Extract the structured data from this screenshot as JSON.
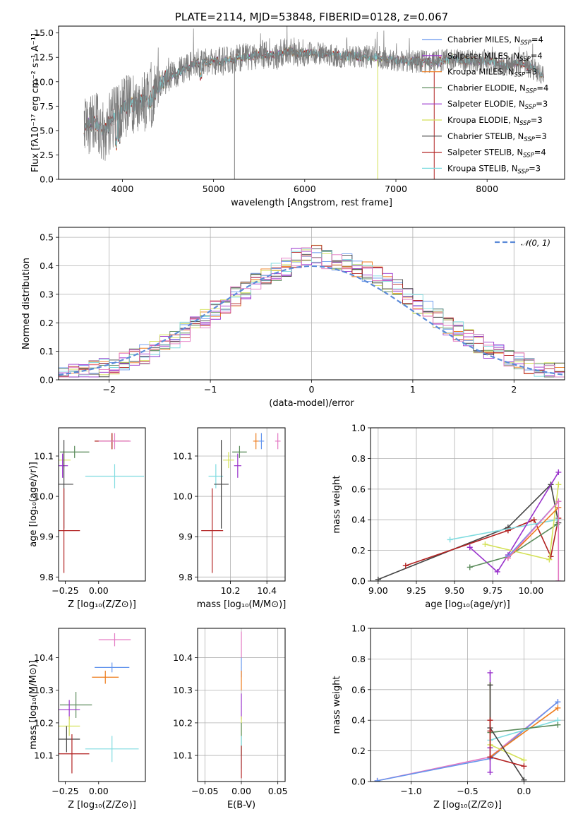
{
  "colors": {
    "Chabrier MILES": "#6495ed",
    "Salpeter MILES": "#9a32cd",
    "Kroupa MILES": "#ee7b1c",
    "Chabrier ELODIE": "#5b8b5b",
    "Salpeter ELODIE": "#9932cc",
    "Kroupa ELODIE": "#d4e157",
    "Chabrier STELIB": "#444444",
    "Salpeter STELIB": "#b22222",
    "Kroupa STELIB": "#7fdce0",
    "pink": "#e377c2",
    "gaussian": "#5b8ad8",
    "grid": "#b0b0b0"
  },
  "chart_data": [
    {
      "id": "spectrum",
      "type": "line",
      "title": "PLATE=2114, MJD=53848, FIBERID=0128, z=0.067",
      "xlabel": "wavelength [Angstrom, rest frame]",
      "ylabel": "Flux [fλ10⁻¹⁷ erg cm⁻² s⁻¹ A⁻¹]",
      "xlim": [
        3300,
        8850
      ],
      "ylim": [
        0,
        15.7
      ],
      "xticks": [
        "4000",
        "5000",
        "6000",
        "7000",
        "8000"
      ],
      "yticks": [
        "0.0",
        "2.5",
        "5.0",
        "7.5",
        "10.0",
        "12.5",
        "15.0"
      ],
      "grid": false,
      "legend_position": "top-right",
      "series": [
        {
          "name": "Chabrier MILES, N_SSP=4",
          "label": "Chabrier MILES, N",
          "sub": "SSP",
          "suffix": "=4"
        },
        {
          "name": "Salpeter MILES, N_SSP=4",
          "label": "Salpeter MILES, N",
          "sub": "SSP",
          "suffix": "=4"
        },
        {
          "name": "Kroupa MILES, N_SSP=3",
          "label": "Kroupa MILES, N",
          "sub": "SSP",
          "suffix": "=3"
        },
        {
          "name": "Chabrier ELODIE, N_SSP=4",
          "label": "Chabrier ELODIE, N",
          "sub": "SSP",
          "suffix": "=4"
        },
        {
          "name": "Salpeter ELODIE, N_SSP=3",
          "label": "Salpeter ELODIE, N",
          "sub": "SSP",
          "suffix": "=3"
        },
        {
          "name": "Kroupa ELODIE, N_SSP=3",
          "label": "Kroupa ELODIE, N",
          "sub": "SSP",
          "suffix": "=3"
        },
        {
          "name": "Chabrier STELIB, N_SSP=3",
          "label": "Chabrier STELIB, N",
          "sub": "SSP",
          "suffix": "=3"
        },
        {
          "name": "Salpeter STELIB, N_SSP=4",
          "label": "Salpeter STELIB, N",
          "sub": "SSP",
          "suffix": "=4"
        },
        {
          "name": "Kroupa STELIB, N_SSP=3",
          "label": "Kroupa STELIB, N",
          "sub": "SSP",
          "suffix": "=3"
        }
      ],
      "continuum": [
        [
          3580,
          5.0
        ],
        [
          3700,
          6.0
        ],
        [
          3800,
          4.9
        ],
        [
          3900,
          6.4
        ],
        [
          4000,
          7.2
        ],
        [
          4100,
          7.7
        ],
        [
          4200,
          8.0
        ],
        [
          4300,
          8.1
        ],
        [
          4400,
          9.7
        ],
        [
          4500,
          10.4
        ],
        [
          4600,
          10.9
        ],
        [
          4700,
          11.4
        ],
        [
          4800,
          11.9
        ],
        [
          4900,
          12.0
        ],
        [
          5000,
          12.2
        ],
        [
          5100,
          12.1
        ],
        [
          5200,
          12.3
        ],
        [
          5300,
          12.5
        ],
        [
          5500,
          12.8
        ],
        [
          5700,
          12.7
        ],
        [
          5800,
          13.2
        ],
        [
          6000,
          12.9
        ],
        [
          6200,
          12.9
        ],
        [
          6400,
          12.6
        ],
        [
          6600,
          12.6
        ],
        [
          6800,
          12.5
        ],
        [
          7000,
          12.2
        ],
        [
          7200,
          12.1
        ],
        [
          7400,
          12.0
        ],
        [
          7600,
          12.4
        ],
        [
          7800,
          12.1
        ],
        [
          8000,
          12.2
        ],
        [
          8200,
          11.7
        ],
        [
          8400,
          11.9
        ],
        [
          8600,
          10.8
        ]
      ],
      "annotations": [
        {
          "x": 5230,
          "ymin": 0,
          "ymax": 12.0,
          "series": "data"
        },
        {
          "x": 6800,
          "ymin": 0,
          "ymax": 12.3,
          "series": "Kroupa ELODIE"
        },
        {
          "x": 7420,
          "ymin": 0,
          "ymax": 11.0,
          "series": "Salpeter STELIB"
        }
      ]
    },
    {
      "id": "residuals",
      "type": "line",
      "xlabel": "(data-model)/error",
      "ylabel": "Normed distribution",
      "xlim": [
        -2.5,
        2.5
      ],
      "ylim": [
        0,
        0.535
      ],
      "xticks": [
        "−2",
        "−1",
        "0",
        "1",
        "2"
      ],
      "yticks": [
        "0.0",
        "0.1",
        "0.2",
        "0.3",
        "0.4",
        "0.5"
      ],
      "grid": true,
      "legend_label": "𝒩(0, 1)",
      "histogram_bin_width": 0.1,
      "histogram_bin_start": -2.5
    },
    {
      "id": "age_vs_Z",
      "type": "scatter",
      "xlabel": "Z [log₁₀(Z/Z⊙)]",
      "ylabel": "age  [log₁₀(age/yr)]",
      "xlim": [
        -0.3,
        0.35
      ],
      "ylim": [
        9.79,
        10.17
      ],
      "xticks": [
        "−0.25",
        "0.00"
      ],
      "yticks": [
        "9.8",
        "9.9",
        "10.0",
        "10.1"
      ],
      "grid": false,
      "points": [
        {
          "series": "Chabrier MILES",
          "x": 0.1,
          "xerr": 0.13,
          "y": 10.137,
          "yerr": 0.02
        },
        {
          "series": "Kroupa MILES",
          "x": 0.1,
          "xerr": 0.13,
          "y": 10.137,
          "yerr": 0.02
        },
        {
          "series": "Salpeter STELIB",
          "x": 0.1,
          "xerr": 0.13,
          "y": 10.137,
          "yerr": 0.02
        },
        {
          "series": "pink",
          "x": 0.12,
          "xerr": 0.12,
          "y": 10.137,
          "yerr": 0.02
        },
        {
          "series": "Chabrier ELODIE",
          "x": -0.18,
          "xerr": 0.11,
          "y": 10.11,
          "yerr": 0.015
        },
        {
          "series": "Kroupa ELODIE",
          "x": -0.26,
          "xerr": 0.05,
          "y": 10.09,
          "yerr": 0.02
        },
        {
          "series": "Salpeter ELODIE",
          "x": -0.27,
          "xerr": 0.04,
          "y": 10.076,
          "yerr": 0.03
        },
        {
          "series": "Kroupa STELIB",
          "x": 0.12,
          "xerr": 0.22,
          "y": 10.05,
          "yerr": 0.03
        },
        {
          "series": "Chabrier STELIB",
          "x": -0.26,
          "xerr": 0.07,
          "y": 10.03,
          "yerr": 0.11
        },
        {
          "series": "Salpeter STELIB",
          "x": -0.26,
          "xerr": 0.12,
          "y": 9.915,
          "yerr": 0.105
        }
      ]
    },
    {
      "id": "age_vs_mass",
      "type": "scatter",
      "xlabel": "mass [log₁₀(M/M⊙)]",
      "ylabel": "",
      "xlim": [
        10.02,
        10.5
      ],
      "ylim": [
        9.79,
        10.17
      ],
      "xticks": [
        "10.2",
        "10.4"
      ],
      "yticks": [
        "9.8",
        "9.9",
        "10.0",
        "10.1"
      ],
      "grid": true,
      "points": [
        {
          "series": "Chabrier MILES",
          "x": 10.37,
          "xerr": 0.015,
          "y": 10.137,
          "yerr": 0.02
        },
        {
          "series": "Kroupa MILES",
          "x": 10.34,
          "xerr": 0.015,
          "y": 10.137,
          "yerr": 0.02
        },
        {
          "series": "pink",
          "x": 10.46,
          "xerr": 0.015,
          "y": 10.137,
          "yerr": 0.02
        },
        {
          "series": "Chabrier ELODIE",
          "x": 10.25,
          "xerr": 0.04,
          "y": 10.11,
          "yerr": 0.015
        },
        {
          "series": "Kroupa ELODIE",
          "x": 10.19,
          "xerr": 0.03,
          "y": 10.09,
          "yerr": 0.02
        },
        {
          "series": "Salpeter ELODIE",
          "x": 10.24,
          "xerr": 0.02,
          "y": 10.076,
          "yerr": 0.03
        },
        {
          "series": "Kroupa STELIB",
          "x": 10.12,
          "xerr": 0.04,
          "y": 10.05,
          "yerr": 0.03
        },
        {
          "series": "Chabrier STELIB",
          "x": 10.15,
          "xerr": 0.04,
          "y": 10.03,
          "yerr": 0.11
        },
        {
          "series": "Salpeter STELIB",
          "x": 10.1,
          "xerr": 0.06,
          "y": 9.915,
          "yerr": 0.105
        }
      ]
    },
    {
      "id": "weight_vs_age",
      "type": "line",
      "xlabel": "age  [log₁₀(age/yr)]",
      "ylabel": "mass weight",
      "xlim": [
        8.95,
        10.22
      ],
      "ylim": [
        0,
        1.0
      ],
      "xticks": [
        "9.00",
        "9.25",
        "9.50",
        "9.75",
        "10.00"
      ],
      "yticks": [
        "0.0",
        "0.2",
        "0.4",
        "0.6",
        "0.8",
        "1.0"
      ],
      "grid": true,
      "series": [
        {
          "name": "Chabrier STELIB",
          "x": [
            9.0,
            9.85,
            10.13,
            10.18
          ],
          "y": [
            0.01,
            0.35,
            0.63,
            0.38
          ]
        },
        {
          "name": "Salpeter STELIB",
          "x": [
            9.18,
            9.85,
            10.02,
            10.13,
            10.18
          ],
          "y": [
            0.1,
            0.33,
            0.4,
            0.16,
            0.41
          ]
        },
        {
          "name": "Kroupa STELIB",
          "x": [
            9.47,
            10.17
          ],
          "y": [
            0.27,
            0.4
          ]
        },
        {
          "name": "Salpeter ELODIE",
          "x": [
            9.6,
            9.78,
            9.85,
            10.18
          ],
          "y": [
            0.22,
            0.06,
            0.17,
            0.71
          ]
        },
        {
          "name": "Chabrier ELODIE",
          "x": [
            9.6,
            9.85,
            10.17
          ],
          "y": [
            0.09,
            0.16,
            0.37
          ]
        },
        {
          "name": "Kroupa ELODIE",
          "x": [
            9.7,
            10.12,
            10.18
          ],
          "y": [
            0.24,
            0.14,
            0.63
          ]
        },
        {
          "name": "Kroupa MILES",
          "x": [
            9.85,
            10.18
          ],
          "y": [
            0.15,
            0.48
          ]
        },
        {
          "name": "Chabrier MILES",
          "x": [
            9.85,
            10.18
          ],
          "y": [
            0.16,
            0.52
          ]
        },
        {
          "name": "pink",
          "x": [
            9.85,
            10.18,
            10.18
          ],
          "y": [
            0.15,
            0.52,
            0.0
          ]
        }
      ]
    },
    {
      "id": "mass_vs_Z",
      "type": "scatter",
      "xlabel": "Z [log₁₀(Z/Z⊙)]",
      "ylabel": "mass [log₁₀(M/M⊙)]",
      "xlim": [
        -0.3,
        0.35
      ],
      "ylim": [
        10.02,
        10.49
      ],
      "xticks": [
        "−0.25",
        "0.00"
      ],
      "yticks": [
        "10.1",
        "10.2",
        "10.3",
        "10.4"
      ],
      "grid": false,
      "points": [
        {
          "series": "pink",
          "x": 0.12,
          "xerr": 0.12,
          "y": 10.455,
          "yerr": 0.02
        },
        {
          "series": "Chabrier MILES",
          "x": 0.1,
          "xerr": 0.13,
          "y": 10.37,
          "yerr": 0.015
        },
        {
          "series": "Kroupa MILES",
          "x": 0.05,
          "xerr": 0.1,
          "y": 10.34,
          "yerr": 0.02
        },
        {
          "series": "Chabrier ELODIE",
          "x": -0.17,
          "xerr": 0.12,
          "y": 10.255,
          "yerr": 0.04
        },
        {
          "series": "Salpeter ELODIE",
          "x": -0.22,
          "xerr": 0.08,
          "y": 10.24,
          "yerr": 0.03
        },
        {
          "series": "Kroupa ELODIE",
          "x": -0.22,
          "xerr": 0.08,
          "y": 10.19,
          "yerr": 0.03
        },
        {
          "series": "Chabrier STELIB",
          "x": -0.24,
          "xerr": 0.1,
          "y": 10.15,
          "yerr": 0.04
        },
        {
          "series": "Kroupa STELIB",
          "x": 0.1,
          "xerr": 0.2,
          "y": 10.12,
          "yerr": 0.04
        },
        {
          "series": "Salpeter STELIB",
          "x": -0.2,
          "xerr": 0.13,
          "y": 10.105,
          "yerr": 0.06
        }
      ]
    },
    {
      "id": "mass_vs_ebv",
      "type": "scatter",
      "xlabel": "E(B-V)",
      "ylabel": "",
      "xlim": [
        -0.06,
        0.06
      ],
      "ylim": [
        10.02,
        10.49
      ],
      "xticks": [
        "−0.05",
        "0.00",
        "0.05"
      ],
      "yticks": [
        "10.1",
        "10.2",
        "10.3",
        "10.4"
      ],
      "grid": true,
      "points": [
        {
          "series": "pink",
          "x": 0,
          "xerr": 0.0005,
          "y": 10.44,
          "yerr": 0.04
        },
        {
          "series": "Chabrier MILES",
          "x": 0,
          "xerr": 0.0005,
          "y": 10.37,
          "yerr": 0.03
        },
        {
          "series": "Kroupa MILES",
          "x": 0,
          "xerr": 0.0005,
          "y": 10.33,
          "yerr": 0.03
        },
        {
          "series": "Salpeter ELODIE",
          "x": 0,
          "xerr": 0.0005,
          "y": 10.25,
          "yerr": 0.04
        },
        {
          "series": "Kroupa ELODIE",
          "x": 0,
          "xerr": 0.0005,
          "y": 10.19,
          "yerr": 0.03
        },
        {
          "series": "Chabrier ELODIE",
          "x": 0,
          "xerr": 0.0005,
          "y": 10.15,
          "yerr": 0.05
        },
        {
          "series": "Kroupa STELIB",
          "x": 0,
          "xerr": 0.0005,
          "y": 10.11,
          "yerr": 0.05
        },
        {
          "series": "Salpeter STELIB",
          "x": 0,
          "xerr": 0.0005,
          "y": 10.08,
          "yerr": 0.05
        }
      ]
    },
    {
      "id": "weight_vs_Z",
      "type": "line",
      "xlabel": "Z [log₁₀(Z/Z⊙)]",
      "ylabel": "mass weight",
      "xlim": [
        -1.36,
        0.36
      ],
      "ylim": [
        0,
        1.0
      ],
      "xticks": [
        "−1.0",
        "−0.5",
        "0.0"
      ],
      "yticks": [
        "0.0",
        "0.2",
        "0.4",
        "0.6",
        "0.8",
        "1.0"
      ],
      "grid": true,
      "series": [
        {
          "name": "pink",
          "x": [
            -1.3,
            -0.3,
            0.3
          ],
          "y": [
            0.005,
            0.16,
            0.52
          ]
        },
        {
          "name": "Chabrier MILES",
          "x": [
            -1.3,
            -0.3,
            0.3
          ],
          "y": [
            0.005,
            0.15,
            0.52
          ]
        },
        {
          "name": "Kroupa MILES",
          "x": [
            -0.3,
            0.3
          ],
          "y": [
            0.16,
            0.48
          ]
        },
        {
          "name": "Kroupa STELIB",
          "x": [
            -0.3,
            0.3
          ],
          "y": [
            0.27,
            0.4
          ]
        },
        {
          "name": "Chabrier ELODIE",
          "x": [
            -0.3,
            0.3
          ],
          "y": [
            0.32,
            0.37
          ]
        },
        {
          "name": "Salpeter ELODIE",
          "x": [
            -0.3,
            -0.3,
            -0.3
          ],
          "y": [
            0.71,
            0.22,
            0.06
          ]
        },
        {
          "name": "Kroupa ELODIE",
          "x": [
            -0.3,
            -0.3,
            0.0
          ],
          "y": [
            0.63,
            0.24,
            0.14
          ]
        },
        {
          "name": "Chabrier STELIB",
          "x": [
            -0.3,
            -0.3,
            0.0
          ],
          "y": [
            0.63,
            0.35,
            0.01
          ]
        },
        {
          "name": "Salpeter STELIB",
          "x": [
            -0.3,
            -0.3,
            -0.3,
            0.0
          ],
          "y": [
            0.4,
            0.33,
            0.16,
            0.1
          ]
        }
      ]
    }
  ]
}
